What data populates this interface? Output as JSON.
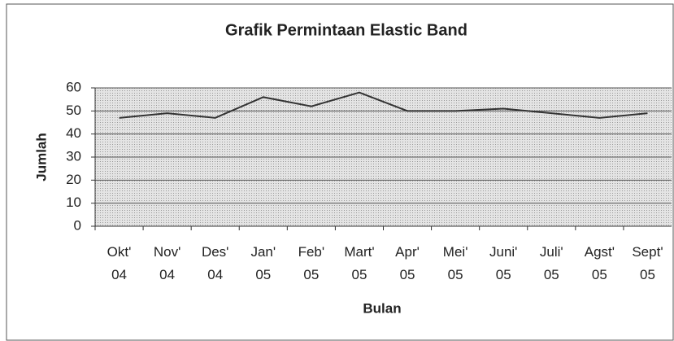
{
  "chart_data": {
    "type": "line",
    "title": "Grafik Permintaan Elastic Band",
    "x_label": "Bulan",
    "y_label": "Jumlah",
    "categories": [
      "Okt'\n04",
      "Nov'\n04",
      "Des'\n04",
      "Jan'\n05",
      "Feb'\n05",
      "Mart'\n05",
      "Apr'\n05",
      "Mei'\n05",
      "Juni'\n05",
      "Juli'\n05",
      "Agst'\n05",
      "Sept'\n05"
    ],
    "series": [
      {
        "name": "Jumlah",
        "color": "#333333",
        "values": [
          47,
          49,
          47,
          56,
          52,
          58,
          50,
          50,
          51,
          49,
          47,
          49
        ]
      }
    ],
    "ylim": [
      0,
      60
    ],
    "yticks": [
      0,
      10,
      20,
      30,
      40,
      50,
      60
    ],
    "grid": true
  }
}
